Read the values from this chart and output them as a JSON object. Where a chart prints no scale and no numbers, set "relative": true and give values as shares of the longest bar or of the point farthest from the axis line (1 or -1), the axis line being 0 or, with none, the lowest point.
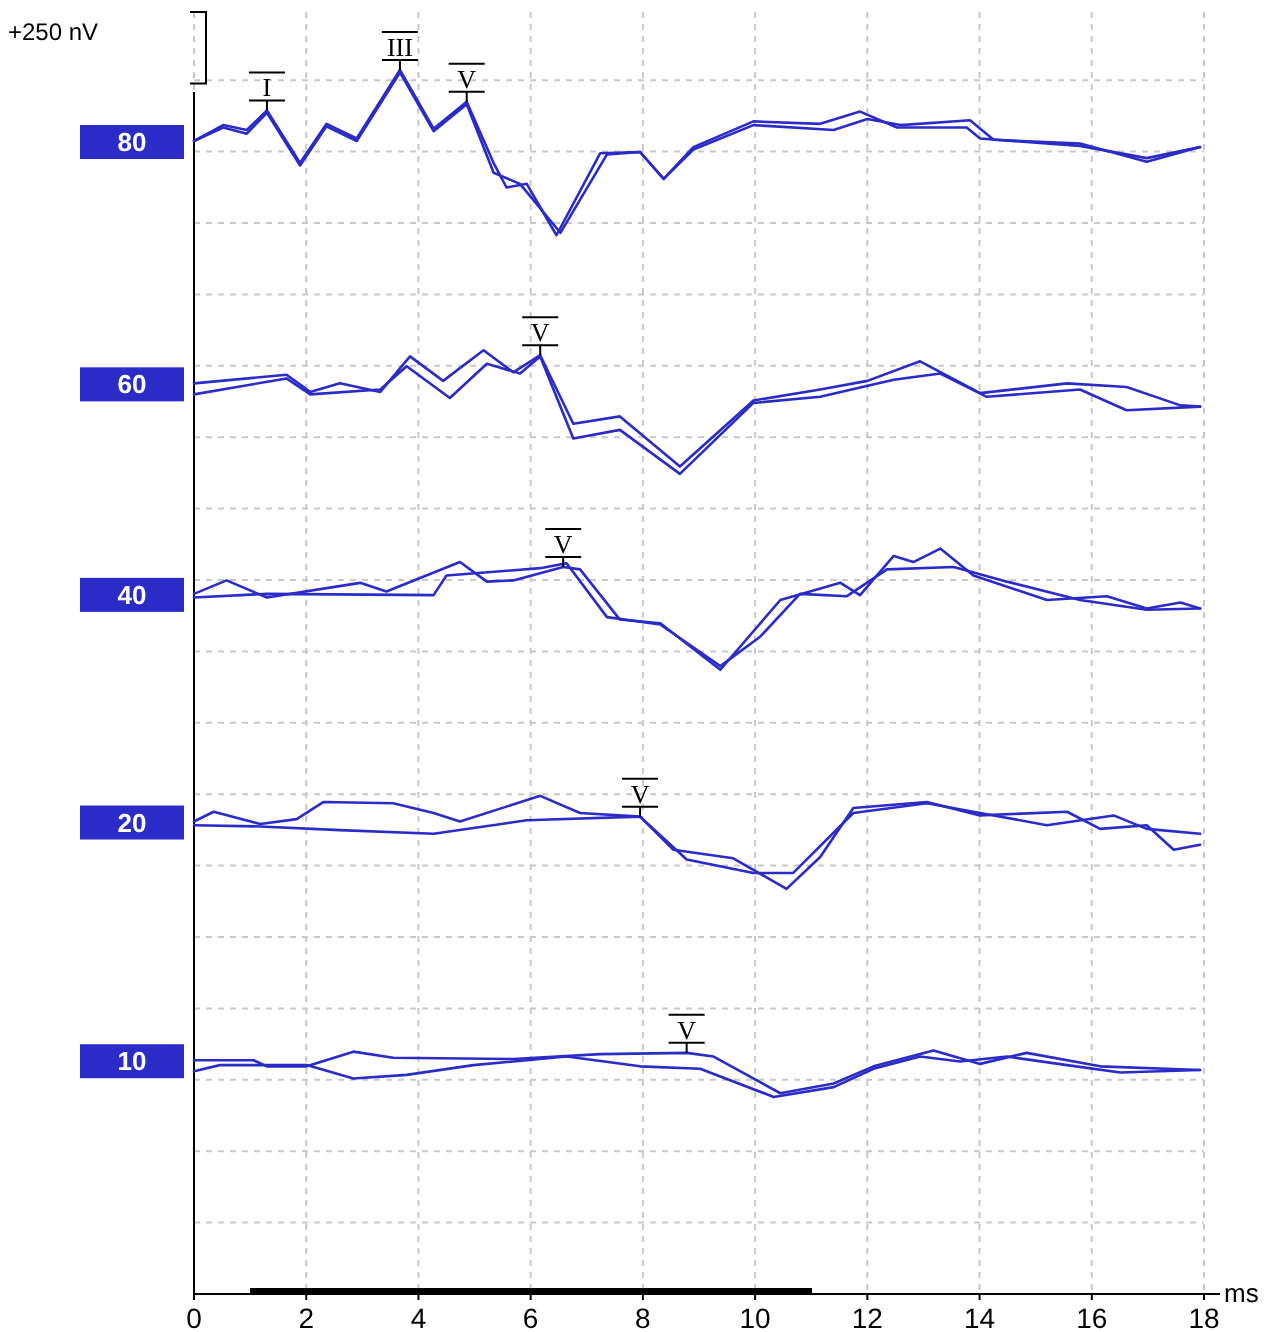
{
  "chart_data": {
    "type": "line",
    "relative": true,
    "xlabel": "ms",
    "xlim": [
      0,
      18
    ],
    "xticks": [
      0,
      2,
      4,
      6,
      8,
      10,
      12,
      14,
      16,
      18
    ],
    "grid": true,
    "legend": false,
    "marker": "none",
    "line_style": "solid",
    "annotations": [
      "+250 nV",
      {
        "text": "I",
        "x": 1.3,
        "y": 0.967
      },
      {
        "text": "III",
        "x": 3.67,
        "y": 1.0
      },
      {
        "text": "V",
        "x": 4.86,
        "y": 0.974
      },
      {
        "text": "V",
        "x": 6.17,
        "y": 0.767
      },
      {
        "text": "V",
        "x": 6.58,
        "y": 0.594
      },
      {
        "text": "V",
        "x": 7.95,
        "y": 0.39
      },
      {
        "text": "V",
        "x": 8.78,
        "y": 0.197
      }
    ],
    "series": [
      {
        "name": "80",
        "color": "#2b2bc8",
        "x": [
          0,
          0.52,
          0.94,
          1.3,
          1.89,
          2.36,
          2.9,
          3.67,
          4.27,
          4.86,
          5.34,
          5.57,
          5.93,
          6.46,
          7.24,
          7.95,
          8.37,
          8.9,
          9.97,
          11.16,
          11.87,
          12.53,
          13.77,
          14.01,
          15.79,
          16.98,
          17.93
        ],
        "values": [
          0.942,
          0.955,
          0.951,
          0.967,
          0.924,
          0.956,
          0.944,
          1.0,
          0.952,
          0.974,
          0.924,
          0.904,
          0.907,
          0.865,
          0.932,
          0.933,
          0.911,
          0.937,
          0.958,
          0.956,
          0.966,
          0.953,
          0.953,
          0.944,
          0.938,
          0.928,
          0.937
        ]
      },
      {
        "color": "#2b2bc8",
        "x": [
          0,
          0.52,
          0.94,
          1.3,
          1.89,
          2.36,
          2.9,
          3.67,
          4.27,
          4.86,
          5.34,
          5.81,
          6.53,
          7.36,
          7.95,
          8.37,
          8.9,
          9.97,
          11.4,
          12.0,
          12.59,
          13.83,
          14.25,
          15.79,
          16.98,
          17.93
        ],
        "values": [
          0.942,
          0.953,
          0.948,
          0.965,
          0.922,
          0.954,
          0.942,
          0.998,
          0.95,
          0.972,
          0.916,
          0.907,
          0.867,
          0.931,
          0.933,
          0.911,
          0.935,
          0.955,
          0.951,
          0.96,
          0.955,
          0.959,
          0.943,
          0.94,
          0.925,
          0.937
        ]
      },
      {
        "name": "60",
        "color": "#2b2bc8",
        "x": [
          0,
          1.65,
          2.07,
          2.6,
          3.32,
          3.85,
          4.44,
          5.16,
          5.69,
          6.17,
          6.76,
          7.59,
          8.66,
          9.97,
          11.16,
          12.0,
          12.94,
          14.01,
          15.56,
          16.62,
          17.58,
          17.93
        ],
        "values": [
          0.744,
          0.751,
          0.737,
          0.744,
          0.737,
          0.766,
          0.746,
          0.771,
          0.753,
          0.767,
          0.711,
          0.717,
          0.676,
          0.73,
          0.739,
          0.746,
          0.762,
          0.736,
          0.744,
          0.741,
          0.726,
          0.725
        ]
      },
      {
        "color": "#2b2bc8",
        "x": [
          0,
          1.65,
          2.07,
          3.32,
          3.79,
          4.56,
          5.22,
          5.81,
          6.17,
          6.76,
          7.59,
          8.66,
          9.97,
          11.16,
          12.47,
          13.3,
          14.13,
          15.79,
          16.62,
          17.93
        ],
        "values": [
          0.735,
          0.748,
          0.735,
          0.739,
          0.758,
          0.732,
          0.76,
          0.752,
          0.766,
          0.699,
          0.706,
          0.67,
          0.728,
          0.733,
          0.747,
          0.752,
          0.733,
          0.739,
          0.722,
          0.725
        ]
      },
      {
        "name": "40",
        "color": "#2b2bc8",
        "x": [
          0,
          0.58,
          1.3,
          2.96,
          3.43,
          4.74,
          5.22,
          5.69,
          6.58,
          6.88,
          7.59,
          8.31,
          9.38,
          10.45,
          11.52,
          11.87,
          12.47,
          12.82,
          13.3,
          13.89,
          15.2,
          16.27,
          16.98,
          17.58,
          17.93
        ],
        "values": [
          0.572,
          0.583,
          0.569,
          0.581,
          0.574,
          0.598,
          0.582,
          0.583,
          0.594,
          0.592,
          0.551,
          0.548,
          0.51,
          0.567,
          0.581,
          0.571,
          0.603,
          0.598,
          0.609,
          0.587,
          0.567,
          0.57,
          0.56,
          0.565,
          0.56
        ]
      },
      {
        "color": "#2b2bc8",
        "x": [
          0,
          1.3,
          4.27,
          4.5,
          6.17,
          6.64,
          7.36,
          8.31,
          9.38,
          10.09,
          10.8,
          11.63,
          12.35,
          13.54,
          14.49,
          15.79,
          16.98,
          17.93
        ],
        "values": [
          0.569,
          0.572,
          0.571,
          0.587,
          0.593,
          0.597,
          0.553,
          0.547,
          0.513,
          0.537,
          0.572,
          0.57,
          0.592,
          0.594,
          0.582,
          0.567,
          0.559,
          0.56
        ]
      },
      {
        "name": "20",
        "color": "#2b2bc8",
        "x": [
          0,
          0.35,
          1.18,
          1.83,
          2.31,
          3.55,
          4.27,
          4.74,
          6.17,
          6.88,
          7.95,
          8.54,
          9.61,
          10.56,
          11.16,
          11.75,
          13.06,
          14.01,
          15.56,
          16.15,
          16.98,
          17.46,
          17.93
        ],
        "values": [
          0.386,
          0.394,
          0.384,
          0.388,
          0.402,
          0.401,
          0.393,
          0.386,
          0.407,
          0.393,
          0.39,
          0.363,
          0.356,
          0.331,
          0.357,
          0.397,
          0.402,
          0.391,
          0.394,
          0.38,
          0.383,
          0.363,
          0.367
        ]
      },
      {
        "color": "#2b2bc8",
        "x": [
          0,
          1.18,
          2.6,
          4.27,
          5.93,
          7.95,
          8.78,
          9.97,
          10.68,
          11.75,
          13.06,
          14.01,
          15.2,
          16.39,
          16.98,
          17.93
        ],
        "values": [
          0.383,
          0.382,
          0.379,
          0.376,
          0.387,
          0.39,
          0.355,
          0.344,
          0.344,
          0.393,
          0.401,
          0.393,
          0.383,
          0.391,
          0.38,
          0.376
        ]
      },
      {
        "name": "10",
        "color": "#2b2bc8",
        "x": [
          0,
          1.06,
          1.3,
          2.01,
          2.84,
          3.55,
          5.69,
          7.24,
          8.78,
          9.26,
          10.45,
          11.4,
          12.11,
          13.18,
          14.01,
          14.84,
          16.15,
          17.93
        ],
        "values": [
          0.191,
          0.191,
          0.186,
          0.186,
          0.198,
          0.193,
          0.192,
          0.196,
          0.197,
          0.194,
          0.164,
          0.172,
          0.186,
          0.199,
          0.188,
          0.197,
          0.186,
          0.183
        ]
      },
      {
        "color": "#2b2bc8",
        "x": [
          0,
          0.46,
          2.01,
          2.84,
          3.79,
          4.98,
          6.64,
          7.95,
          9.02,
          10.33,
          11.4,
          12.11,
          12.94,
          13.65,
          14.49,
          15.56,
          16.51,
          17.93
        ],
        "values": [
          0.182,
          0.187,
          0.187,
          0.176,
          0.179,
          0.187,
          0.194,
          0.186,
          0.184,
          0.161,
          0.169,
          0.184,
          0.194,
          0.19,
          0.194,
          0.187,
          0.181,
          0.183
        ]
      }
    ]
  }
}
